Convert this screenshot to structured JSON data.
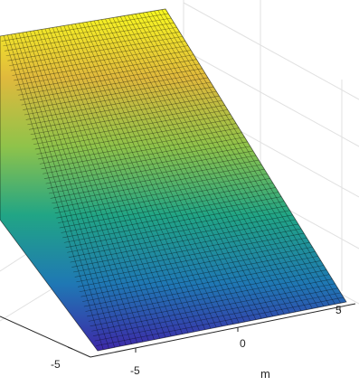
{
  "chart_data": {
    "type": "surface",
    "title": "",
    "xlabel": "",
    "ylabel": "m",
    "zlabel": "",
    "x_ticks": [
      "-5"
    ],
    "y_ticks": [
      "-5",
      "0",
      "5"
    ],
    "xlim": [
      -8,
      8
    ],
    "ylim": [
      -8,
      8
    ],
    "colormap": "parula",
    "colormap_stops": [
      "#3e26a8",
      "#1f78b4",
      "#21a585",
      "#8fc34a",
      "#e0b93c",
      "#f9f921"
    ],
    "grid": true,
    "edge_color": "#000000",
    "background": "#ffffff"
  }
}
